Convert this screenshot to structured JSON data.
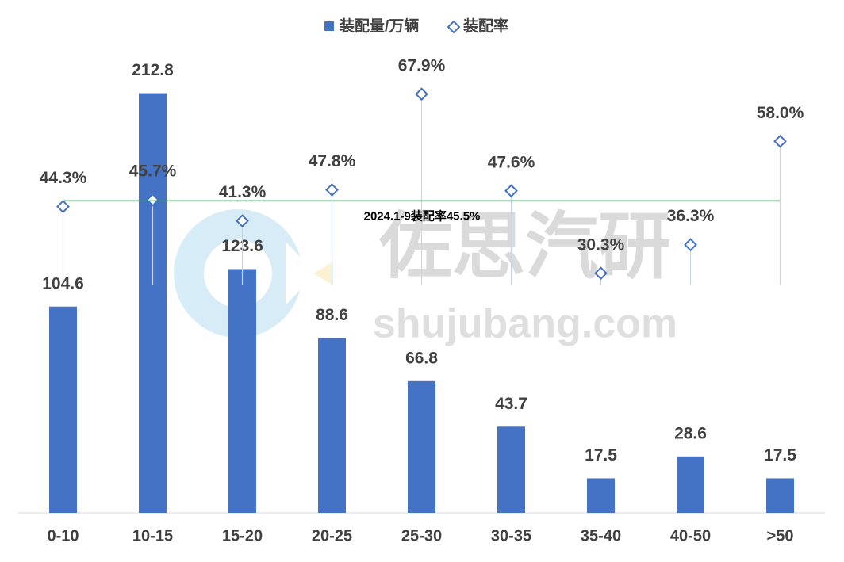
{
  "chart_data": {
    "type": "bar",
    "categories": [
      "0-10",
      "10-15",
      "15-20",
      "20-25",
      "25-30",
      "30-35",
      "35-40",
      "40-50",
      ">50"
    ],
    "series": [
      {
        "name": "装配量/万辆",
        "type": "bar",
        "color": "#4472c4",
        "values": [
          104.6,
          212.8,
          123.6,
          88.6,
          66.8,
          43.7,
          17.5,
          28.6,
          17.5
        ]
      },
      {
        "name": "装配率",
        "type": "marker",
        "axis": "y2",
        "color": "#4472c4",
        "values": [
          44.3,
          45.7,
          41.3,
          47.8,
          67.9,
          47.6,
          30.3,
          36.3,
          58.0
        ],
        "value_labels": [
          "44.3%",
          "45.7%",
          "41.3%",
          "47.8%",
          "67.9%",
          "47.6%",
          "30.3%",
          "36.3%",
          "58.0%"
        ]
      }
    ],
    "ylim": [
      0,
      250
    ],
    "y2lim": [
      -20,
      83.5
    ],
    "reference_line": {
      "value": 45.5,
      "label": "2024.1-9装配率45.5%",
      "color": "#2e9e4f"
    },
    "legend": "top",
    "watermark": {
      "title": "佐思汽研",
      "site": "shujubang.com"
    }
  }
}
